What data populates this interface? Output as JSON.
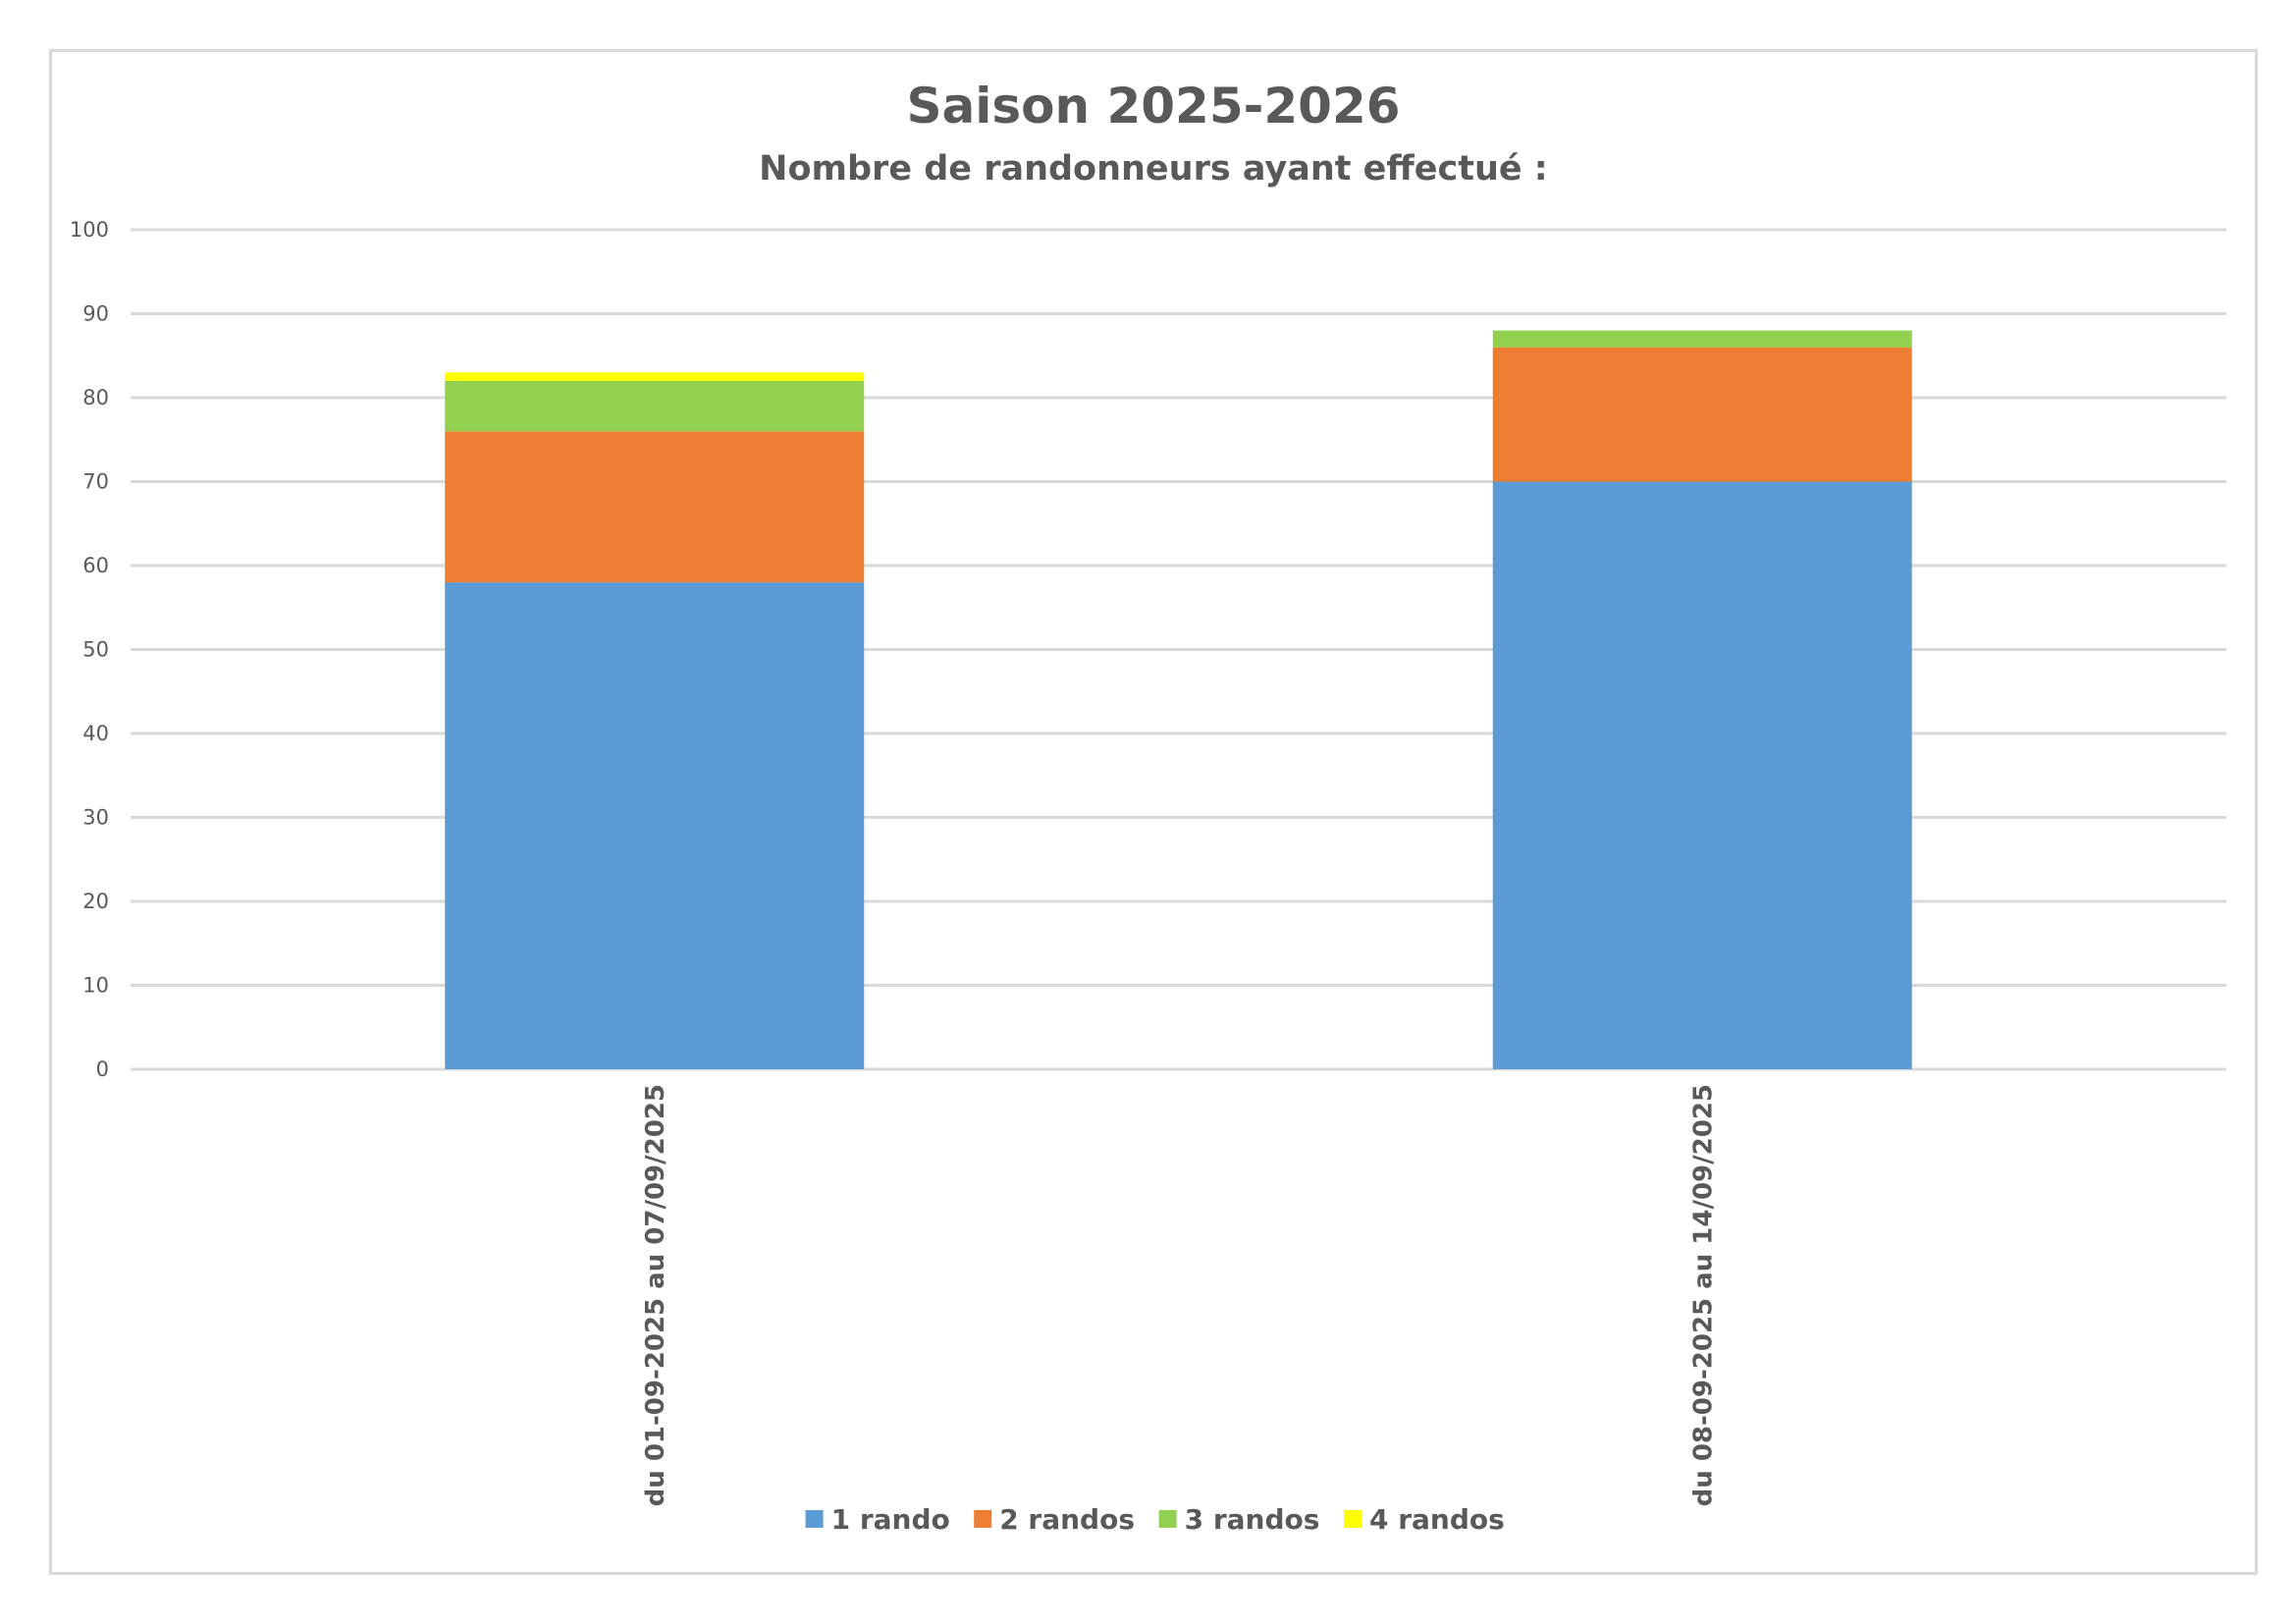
{
  "chart_data": {
    "type": "bar",
    "stacked": true,
    "title": "Saison 2025-2026",
    "subtitle": "Nombre de randonneurs ayant effectué :",
    "xlabel": "",
    "ylabel": "",
    "ylim": [
      0,
      100
    ],
    "yticks": [
      0,
      10,
      20,
      30,
      40,
      50,
      60,
      70,
      80,
      90,
      100
    ],
    "grid": true,
    "legend_position": "bottom",
    "categories": [
      "du 01-09-2025 au 07/09/2025",
      "du 08-09-2025 au 14/09/2025"
    ],
    "series": [
      {
        "name": "1 rando",
        "color": "#5b9bd5",
        "values": [
          58,
          70
        ]
      },
      {
        "name": "2 randos",
        "color": "#ed7d31",
        "values": [
          18,
          16
        ]
      },
      {
        "name": "3 randos",
        "color": "#92d050",
        "values": [
          6,
          2
        ]
      },
      {
        "name": "4 randos",
        "color": "#ffff00",
        "values": [
          1,
          0
        ]
      }
    ]
  }
}
